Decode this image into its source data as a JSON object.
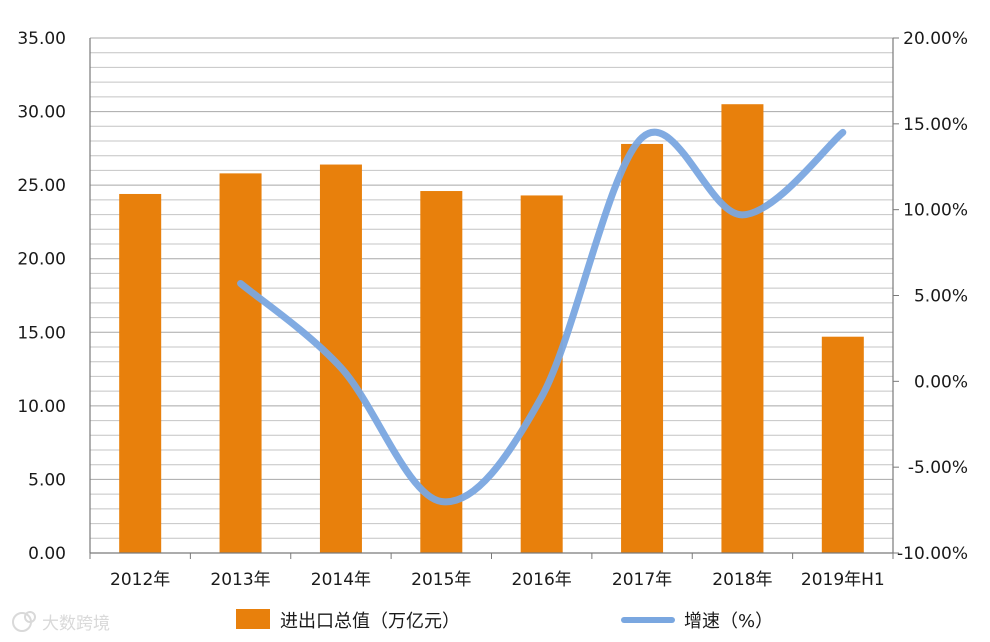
{
  "chart_data": {
    "type": "bar+line",
    "categories": [
      "2012年",
      "2013年",
      "2014年",
      "2015年",
      "2016年",
      "2017年",
      "2018年",
      "2019年H1"
    ],
    "series": [
      {
        "name": "进出口总值（万亿元）",
        "type": "bar",
        "axis": "left",
        "color": "#e8800c",
        "values": [
          24.4,
          25.8,
          26.4,
          24.6,
          24.3,
          27.8,
          30.5,
          14.7
        ]
      },
      {
        "name": "增速（%）",
        "type": "line",
        "axis": "right",
        "color": "#7aa7e0",
        "values": [
          null,
          5.7,
          0.8,
          -7.0,
          -0.9,
          14.2,
          9.7,
          14.5
        ]
      }
    ],
    "y_left": {
      "min": 0,
      "max": 35,
      "major_step": 5,
      "minor_step": 1,
      "ticks": [
        "0.00",
        "5.00",
        "10.00",
        "15.00",
        "20.00",
        "25.00",
        "30.00",
        "35.00"
      ]
    },
    "y_right": {
      "min": -10,
      "max": 20,
      "major_step": 5,
      "ticks": [
        "-10.00%",
        "-5.00%",
        "0.00%",
        "5.00%",
        "10.00%",
        "15.00%",
        "20.00%"
      ]
    },
    "grid": true,
    "legend": {
      "position": "bottom",
      "items": [
        "进出口总值（万亿元）",
        "增速（%）"
      ]
    }
  },
  "watermark": {
    "text": "大数跨境",
    "color": "#d9d9d9"
  }
}
